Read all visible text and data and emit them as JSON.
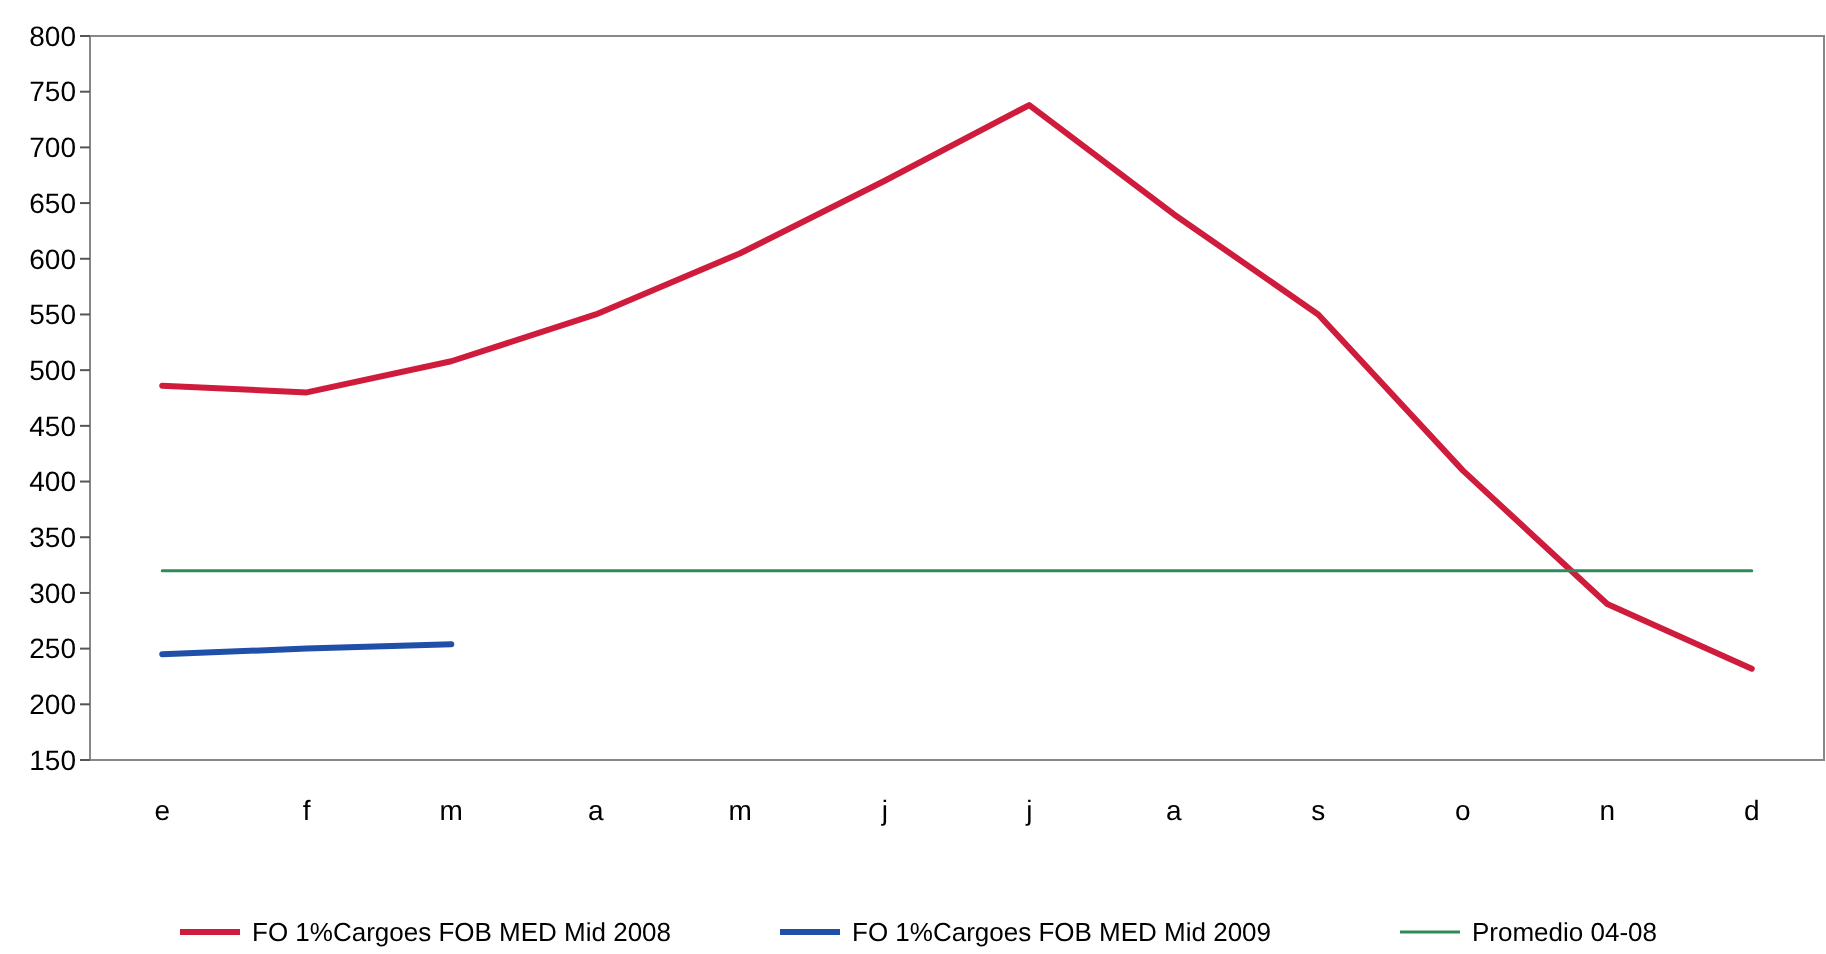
{
  "chart_data": {
    "type": "line",
    "categories": [
      "e",
      "f",
      "m",
      "a",
      "m",
      "j",
      "j",
      "a",
      "s",
      "o",
      "n",
      "d"
    ],
    "series": [
      {
        "name": "FO 1%Cargoes FOB MED Mid 2008",
        "color": "#d01c3c",
        "values": [
          486,
          480,
          508,
          550,
          605,
          670,
          738,
          640,
          550,
          410,
          290,
          232
        ]
      },
      {
        "name": "FO 1%Cargoes FOB MED Mid 2009",
        "color": "#1f4fa8",
        "values": [
          245,
          250,
          254,
          null,
          null,
          null,
          null,
          null,
          null,
          null,
          null,
          null
        ]
      },
      {
        "name": "Promedio 04-08",
        "color": "#2e8b57",
        "values": [
          320,
          320,
          320,
          320,
          320,
          320,
          320,
          320,
          320,
          320,
          320,
          320
        ]
      }
    ],
    "ylim": [
      150,
      800
    ],
    "yticks": [
      150,
      200,
      250,
      300,
      350,
      400,
      450,
      500,
      550,
      600,
      650,
      700,
      750,
      800
    ],
    "grid": false,
    "legend": "bottom",
    "marker": "none",
    "line_style": "solid"
  }
}
